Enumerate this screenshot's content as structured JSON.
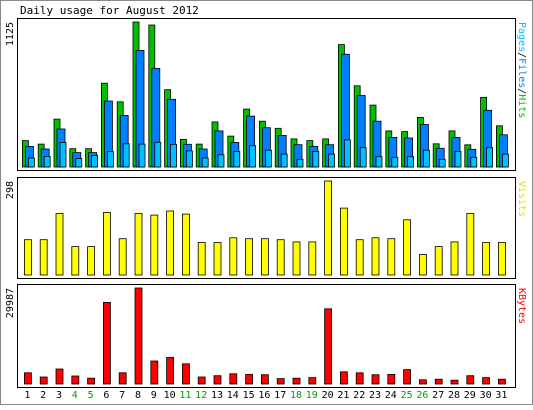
{
  "chart_data": {
    "type": "bar",
    "title": "Daily usage for August 2012",
    "categories": [
      "1",
      "2",
      "3",
      "4",
      "5",
      "6",
      "7",
      "8",
      "9",
      "10",
      "11",
      "12",
      "13",
      "14",
      "15",
      "16",
      "17",
      "18",
      "19",
      "20",
      "21",
      "22",
      "23",
      "24",
      "25",
      "26",
      "27",
      "28",
      "29",
      "30",
      "31"
    ],
    "weekend_days": [
      "4",
      "5",
      "11",
      "12",
      "18",
      "19",
      "25",
      "26"
    ],
    "panels": [
      {
        "id": "hits-files-pages",
        "ymax": 1125,
        "ymax_label": "1125",
        "right_label_parts": [
          {
            "text": "Pages",
            "color": "#00c0ff"
          },
          {
            "text": "/",
            "color": "#000000"
          },
          {
            "text": "Files",
            "color": "#0080ff"
          },
          {
            "text": "/",
            "color": "#000000"
          },
          {
            "text": "Hits",
            "color": "#00c000"
          }
        ],
        "series": [
          {
            "name": "Hits",
            "color": "#00c000",
            "values": [
              205,
              178,
              372,
              142,
              142,
              650,
              506,
              1125,
              1102,
              600,
              215,
              178,
              350,
              240,
              449,
              355,
              300,
              218,
              205,
              218,
              950,
              630,
              480,
              280,
              275,
              385,
              180,
              280,
              172,
              540,
              320
            ]
          },
          {
            "name": "Files",
            "color": "#0080ff",
            "values": [
              160,
              140,
              295,
              112,
              112,
              512,
              400,
              905,
              765,
              525,
              176,
              140,
              280,
              190,
              395,
              305,
              245,
              173,
              160,
              173,
              875,
              555,
              355,
              230,
              225,
              330,
              145,
              230,
              137,
              440,
              250
            ]
          },
          {
            "name": "Pages",
            "color": "#00c0ff",
            "values": [
              70,
              82,
              190,
              65,
              90,
              120,
              180,
              178,
              192,
              175,
              125,
              70,
              95,
              120,
              165,
              130,
              100,
              60,
              120,
              100,
              210,
              150,
              80,
              75,
              80,
              130,
              60,
              120,
              75,
              150,
              100
            ]
          }
        ]
      },
      {
        "id": "visits",
        "ymax": 298,
        "ymax_label": "298",
        "right_label_parts": [
          {
            "text": "Visits",
            "color": "#e0e000"
          }
        ],
        "series": [
          {
            "name": "Visits",
            "color": "#ffff00",
            "values": [
              112,
              112,
              195,
              90,
              90,
              198,
              115,
              195,
              190,
              203,
              193,
              103,
              103,
              118,
              115,
              115,
              112,
              105,
              105,
              298,
              212,
              112,
              118,
              115,
              175,
              65,
              90,
              105,
              195,
              103,
              103
            ]
          }
        ]
      },
      {
        "id": "kbytes",
        "ymax": 29987,
        "ymax_label": "29987",
        "right_label_parts": [
          {
            "text": "KBytes",
            "color": "#ff0000"
          }
        ],
        "series": [
          {
            "name": "KBytes",
            "color": "#ff0000",
            "values": [
              3500,
              2200,
              4700,
              2500,
              1800,
              25500,
              3500,
              29987,
              7200,
              8300,
              6300,
              2200,
              2600,
              3200,
              3000,
              2900,
              1700,
              1800,
              2000,
              23500,
              3800,
              3500,
              2900,
              3000,
              4500,
              1300,
              1500,
              1200,
              2600,
              2000,
              1500
            ]
          }
        ]
      }
    ]
  }
}
